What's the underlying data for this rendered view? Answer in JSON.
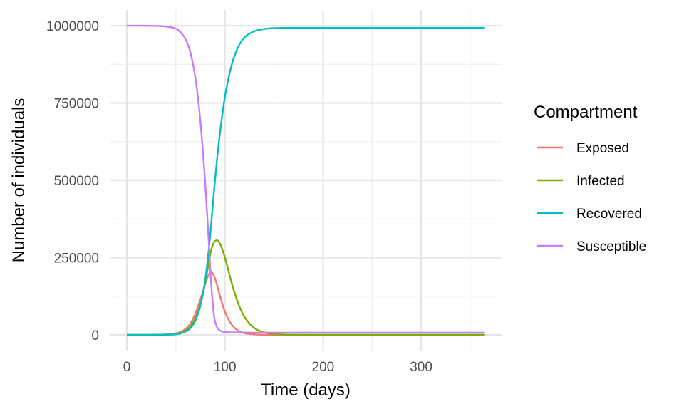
{
  "chart_data": {
    "type": "line",
    "title": "",
    "xlabel": "Time (days)",
    "ylabel": "Number of individuals",
    "xlim": [
      0,
      365
    ],
    "ylim": [
      0,
      1000000
    ],
    "x_ticks": [
      0,
      100,
      200,
      300
    ],
    "y_ticks": [
      0,
      250000,
      500000,
      750000,
      1000000
    ],
    "y_tick_labels": [
      "0",
      "250000",
      "500000",
      "750000",
      "1000000"
    ],
    "x_tick_labels": [
      "0",
      "100",
      "200",
      "300"
    ],
    "grid": true,
    "legend": {
      "title": "Compartment",
      "position": "right"
    },
    "x": [
      0,
      20,
      40,
      50,
      55,
      60,
      65,
      70,
      75,
      80,
      83,
      86,
      89,
      92,
      95,
      100,
      105,
      110,
      115,
      120,
      130,
      140,
      150,
      170,
      200,
      250,
      300,
      365
    ],
    "series": [
      {
        "name": "Exposed",
        "color": "#F8766D",
        "values": [
          0,
          200,
          1500,
          5000,
          10000,
          20000,
          38000,
          70000,
          115000,
          165000,
          192000,
          203000,
          190000,
          160000,
          125000,
          75000,
          42000,
          22000,
          11000,
          5500,
          1500,
          400,
          100,
          0,
          0,
          0,
          0,
          0
        ]
      },
      {
        "name": "Infected",
        "color": "#7CAE00",
        "values": [
          0,
          100,
          800,
          3000,
          7000,
          14000,
          28000,
          55000,
          100000,
          170000,
          225000,
          275000,
          300000,
          306000,
          295000,
          250000,
          190000,
          135000,
          90000,
          58000,
          22000,
          8000,
          3000,
          400,
          0,
          0,
          0,
          0
        ]
      },
      {
        "name": "Recovered",
        "color": "#00BFC4",
        "values": [
          0,
          50,
          500,
          2000,
          5000,
          11000,
          23000,
          47000,
          95000,
          180000,
          260000,
          360000,
          470000,
          570000,
          655000,
          770000,
          850000,
          905000,
          940000,
          962000,
          982000,
          989000,
          992000,
          993000,
          993000,
          993000,
          993000,
          993000
        ]
      },
      {
        "name": "Susceptible",
        "color": "#C77CFF",
        "values": [
          1000000,
          999700,
          997000,
          990000,
          978000,
          955000,
          911000,
          828000,
          690000,
          485000,
          330000,
          165000,
          60000,
          25000,
          14000,
          9500,
          8300,
          7800,
          7500,
          7300,
          7100,
          7000,
          7000,
          7000,
          7000,
          7000,
          7000,
          7000
        ]
      }
    ]
  }
}
